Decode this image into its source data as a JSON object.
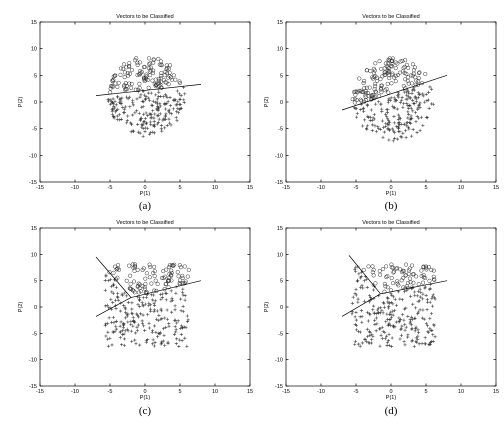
{
  "chart_data": [
    {
      "type": "scatter",
      "panel": "a",
      "title": "Vectors to be Classified",
      "xlabel": "P(1)",
      "ylabel": "P(2)",
      "caption": "(a)",
      "xlim": [
        -15,
        15
      ],
      "ylim": [
        -15,
        15
      ],
      "xticks": [
        "-15",
        "-10",
        "-5",
        "0",
        "5",
        "10",
        "15"
      ],
      "yticks": [
        "15",
        "10",
        "5",
        "0",
        "-5",
        "-10",
        "-15"
      ],
      "cloud": {
        "cx": 0.2,
        "cy": 1.0,
        "rx": 5.5,
        "ry": 7.5,
        "shape": "ellipse",
        "boundary": "line"
      },
      "decision_boundary": [
        [
          -7,
          1.2
        ],
        [
          8,
          3.3
        ]
      ],
      "series": [
        {
          "marker": "o",
          "region": "above boundary"
        },
        {
          "marker": "+",
          "region": "below boundary"
        }
      ]
    },
    {
      "type": "scatter",
      "panel": "b",
      "title": "Vectors to be Classified",
      "xlabel": "P(1)",
      "ylabel": "P(2)",
      "caption": "(b)",
      "xlim": [
        -15,
        15
      ],
      "ylim": [
        -15,
        15
      ],
      "xticks": [
        "-15",
        "-10",
        "-5",
        "0",
        "5",
        "10",
        "15"
      ],
      "yticks": [
        "15",
        "10",
        "5",
        "0",
        "-5",
        "-10",
        "-15"
      ],
      "cloud": {
        "cx": 0.3,
        "cy": 0.5,
        "rx": 5.8,
        "ry": 7.8,
        "shape": "ellipse",
        "boundary": "line"
      },
      "decision_boundary": [
        [
          -7,
          -1.5
        ],
        [
          8,
          5.0
        ]
      ],
      "series": [
        {
          "marker": "o",
          "region": "above boundary"
        },
        {
          "marker": "+",
          "region": "below boundary"
        }
      ]
    },
    {
      "type": "scatter",
      "panel": "c",
      "title": "Vectors to be Classified",
      "xlabel": "P(1)",
      "ylabel": "P(2)",
      "caption": "(c)",
      "xlim": [
        -15,
        15
      ],
      "ylim": [
        -15,
        15
      ],
      "xticks": [
        "-15",
        "-10",
        "-5",
        "0",
        "5",
        "10",
        "15"
      ],
      "yticks": [
        "15",
        "10",
        "5",
        "0",
        "-5",
        "-10",
        "-15"
      ],
      "cloud": {
        "cx": 0.3,
        "cy": 0.3,
        "rx": 6.0,
        "ry": 7.8,
        "shape": "rect",
        "boundary": "vee"
      },
      "decision_boundary": [
        [
          -7,
          -1.8
        ],
        [
          -2,
          1.8
        ],
        [
          8,
          5.0
        ]
      ],
      "decision_boundary_2": [
        [
          -7,
          9.5
        ],
        [
          -2,
          1.8
        ]
      ],
      "series": [
        {
          "marker": "o",
          "region": "above boundary"
        },
        {
          "marker": "+",
          "region": "below boundary"
        }
      ]
    },
    {
      "type": "scatter",
      "panel": "d",
      "title": "Vectors to be Classified",
      "xlabel": "P(1)",
      "ylabel": "P(2)",
      "caption": "(d)",
      "xlim": [
        -15,
        15
      ],
      "ylim": [
        -15,
        15
      ],
      "xticks": [
        "-15",
        "-10",
        "-5",
        "0",
        "5",
        "10",
        "15"
      ],
      "yticks": [
        "15",
        "10",
        "5",
        "0",
        "-5",
        "-10",
        "-15"
      ],
      "cloud": {
        "cx": 0.3,
        "cy": 0.3,
        "rx": 6.0,
        "ry": 7.8,
        "shape": "rect",
        "boundary": "vee"
      },
      "decision_boundary": [
        [
          -7,
          -1.8
        ],
        [
          -1.5,
          2.5
        ],
        [
          8,
          5.0
        ]
      ],
      "decision_boundary_2": [
        [
          -6,
          9.8
        ],
        [
          -1.5,
          2.5
        ]
      ],
      "series": [
        {
          "marker": "o",
          "region": "above boundary"
        },
        {
          "marker": "+",
          "region": "below boundary"
        }
      ]
    }
  ]
}
